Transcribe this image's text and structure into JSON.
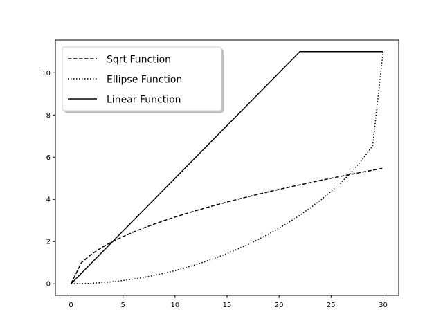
{
  "chart_data": {
    "type": "line",
    "title": "",
    "xlabel": "",
    "ylabel": "",
    "xlim": [
      -1.5,
      31.5
    ],
    "ylim": [
      -0.55,
      11.55
    ],
    "xticks": [
      0,
      5,
      10,
      15,
      20,
      25,
      30
    ],
    "yticks": [
      0,
      2,
      4,
      6,
      8,
      10
    ],
    "xtick_labels": [
      "0",
      "5",
      "10",
      "15",
      "20",
      "25",
      "30"
    ],
    "ytick_labels": [
      "0",
      "2",
      "4",
      "6",
      "8",
      "10"
    ],
    "grid": false,
    "legend_position": "top-left",
    "series": [
      {
        "name": "Sqrt Function",
        "style": "dashed",
        "color": "#000000",
        "x": [
          0,
          1,
          2,
          3,
          4,
          5,
          6,
          7,
          8,
          9,
          10,
          11,
          12,
          13,
          14,
          15,
          16,
          17,
          18,
          19,
          20,
          21,
          22,
          23,
          24,
          25,
          26,
          27,
          28,
          29,
          30
        ],
        "y": [
          0,
          1.0,
          1.414,
          1.732,
          2.0,
          2.236,
          2.449,
          2.646,
          2.828,
          3.0,
          3.162,
          3.317,
          3.464,
          3.606,
          3.742,
          3.873,
          4.0,
          4.123,
          4.243,
          4.359,
          4.472,
          4.583,
          4.69,
          4.796,
          4.899,
          5.0,
          5.099,
          5.196,
          5.292,
          5.385,
          5.477
        ]
      },
      {
        "name": "Ellipse Function",
        "style": "dotted",
        "color": "#000000",
        "x": [
          0,
          1,
          2,
          3,
          4,
          5,
          6,
          7,
          8,
          9,
          10,
          11,
          12,
          13,
          14,
          15,
          16,
          17,
          18,
          19,
          20,
          21,
          22,
          23,
          24,
          25,
          26,
          27,
          28,
          29,
          30
        ],
        "y": [
          0,
          0.006,
          0.024,
          0.055,
          0.098,
          0.154,
          0.222,
          0.303,
          0.397,
          0.504,
          0.624,
          0.758,
          0.905,
          1.066,
          1.242,
          1.432,
          1.638,
          1.86,
          2.099,
          2.356,
          2.632,
          2.929,
          3.248,
          3.593,
          3.966,
          4.374,
          4.82,
          5.318,
          5.883,
          6.548,
          11.0
        ]
      },
      {
        "name": "Linear Function",
        "style": "solid",
        "color": "#000000",
        "x": [
          0,
          22,
          30
        ],
        "y": [
          0,
          11,
          11
        ]
      }
    ]
  }
}
